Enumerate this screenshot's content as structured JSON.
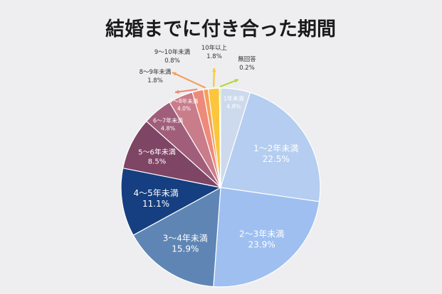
{
  "chart_data": {
    "type": "pie",
    "title": "結婚までに付き合った期間",
    "start": "top",
    "direction": "clockwise",
    "slices": [
      {
        "label": "1年未満",
        "value": 4.8,
        "value_text": "4.8%",
        "color": "#cdd9ec",
        "text_color": "#ffffff",
        "label_mode": "inside"
      },
      {
        "label": "1〜2年未満",
        "value": 22.5,
        "value_text": "22.5%",
        "color": "#b4cdf0",
        "text_color": "#ffffff",
        "label_mode": "inside"
      },
      {
        "label": "2〜3年未満",
        "value": 23.9,
        "value_text": "23.9%",
        "color": "#9fbff0",
        "text_color": "#ffffff",
        "label_mode": "inside"
      },
      {
        "label": "3〜4年未満",
        "value": 15.9,
        "value_text": "15.9%",
        "color": "#5e85b4",
        "text_color": "#ffffff",
        "label_mode": "inside"
      },
      {
        "label": "4〜5年未満",
        "value": 11.1,
        "value_text": "11.1%",
        "color": "#153f80",
        "text_color": "#ffffff",
        "label_mode": "inside"
      },
      {
        "label": "5〜6年未満",
        "value": 8.5,
        "value_text": "8.5%",
        "color": "#7e4565",
        "text_color": "#ffffff",
        "label_mode": "inside"
      },
      {
        "label": "6〜7年未満",
        "value": 4.8,
        "value_text": "4.8%",
        "color": "#a05e7a",
        "text_color": "#ffffff",
        "label_mode": "inside"
      },
      {
        "label": "7〜8年未満",
        "value": 4.0,
        "value_text": "4.0%",
        "color": "#c97c8a",
        "text_color": "#ffffff",
        "label_mode": "inside"
      },
      {
        "label": "8〜9年未満",
        "value": 1.8,
        "value_text": "1.8%",
        "color": "#ee8a7a",
        "text_color": "#333333",
        "label_mode": "outside"
      },
      {
        "label": "9〜10年未満",
        "value": 0.8,
        "value_text": "0.8%",
        "color": "#f5a05a",
        "text_color": "#333333",
        "label_mode": "outside"
      },
      {
        "label": "10年以上",
        "value": 1.8,
        "value_text": "1.8%",
        "color": "#fbc63e",
        "text_color": "#333333",
        "label_mode": "outside"
      },
      {
        "label": "無回答",
        "value": 0.2,
        "value_text": "0.2%",
        "color": "#b6d83a",
        "text_color": "#333333",
        "label_mode": "outside"
      }
    ]
  }
}
